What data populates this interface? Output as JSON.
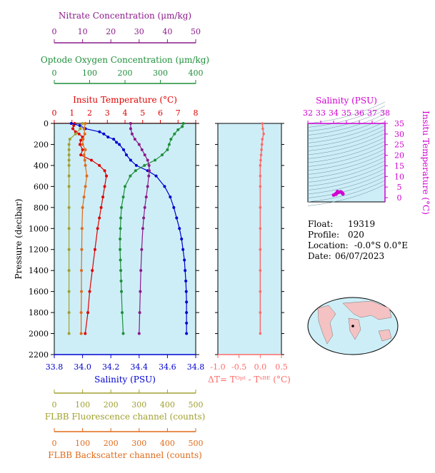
{
  "colors": {
    "nitrate": "#8b1a8b",
    "oxygen": "#1f8f3a",
    "temperature": "#e00000",
    "salinity": "#0000d0",
    "fluorescence": "#a0a030",
    "backscatter": "#e06a1a",
    "deltaT": "#ff6a6a",
    "ts": "#d000d0",
    "panel_bg": "#cdeef7",
    "map_land": "#f4c2c2"
  },
  "info": {
    "float_label": "Float:",
    "float_value": "19319",
    "profile_label": "Profile:",
    "profile_value": "020",
    "location_label": "Location:",
    "location_value": "-0.0°S   0.0°E",
    "date_label": "Date:",
    "date_value": "06/07/2023"
  },
  "chart_data": [
    {
      "type": "line",
      "name": "main-profiles",
      "ylabel": "Pressure (decibar)",
      "ylim": [
        2200,
        0
      ],
      "yticks": [
        0,
        200,
        400,
        600,
        800,
        1000,
        1200,
        1400,
        1600,
        1800,
        2000,
        2200
      ],
      "axes": {
        "nitrate": {
          "label": "Nitrate Concentration (μm/kg)",
          "range": [
            0,
            50
          ],
          "ticks": [
            0,
            10,
            20,
            30,
            40,
            50
          ]
        },
        "oxygen": {
          "label": "Optode Oxygen Concentration (μm/kg)",
          "range": [
            0,
            400
          ],
          "ticks": [
            0,
            100,
            200,
            300,
            400
          ]
        },
        "temperature": {
          "label": "Insitu Temperature (°C)",
          "range": [
            0,
            8
          ],
          "ticks": [
            0,
            1,
            2,
            3,
            4,
            5,
            6,
            7,
            8
          ]
        },
        "salinity": {
          "label": "Salinity (PSU)",
          "range": [
            33.8,
            34.8
          ],
          "ticks": [
            "33.8",
            "34.0",
            "34.2",
            "34.4",
            "34.6",
            "34.8"
          ]
        },
        "fluorescence": {
          "label": "FLBB Fluorescence channel (counts)",
          "range": [
            0,
            500
          ],
          "ticks": [
            0,
            100,
            200,
            300,
            400,
            500
          ]
        },
        "backscatter": {
          "label": "FLBB Backscatter channel (counts)",
          "range": [
            0,
            500
          ],
          "ticks": [
            0,
            100,
            200,
            300,
            400,
            500
          ]
        }
      },
      "series": [
        {
          "key": "temperature",
          "pressure": [
            0,
            20,
            50,
            80,
            100,
            130,
            160,
            200,
            250,
            300,
            350,
            400,
            450,
            500,
            600,
            700,
            800,
            900,
            1000,
            1200,
            1400,
            1600,
            1800,
            2000
          ],
          "values": [
            1.15,
            1.1,
            1.05,
            1.2,
            1.4,
            1.6,
            1.5,
            1.45,
            1.6,
            1.5,
            2.1,
            2.55,
            2.85,
            2.95,
            2.85,
            2.75,
            2.65,
            2.55,
            2.45,
            2.3,
            2.15,
            2.0,
            1.9,
            1.75
          ]
        },
        {
          "key": "salinity",
          "pressure": [
            0,
            20,
            50,
            80,
            100,
            130,
            150,
            180,
            200,
            250,
            300,
            350,
            400,
            450,
            500,
            600,
            700,
            800,
            900,
            1000,
            1100,
            1200,
            1300,
            1400,
            1500,
            1600,
            1700,
            1800,
            1900,
            2000
          ],
          "values": [
            33.92,
            33.98,
            34.02,
            34.12,
            34.15,
            34.18,
            34.22,
            34.24,
            34.26,
            34.29,
            34.31,
            34.34,
            34.38,
            34.46,
            34.52,
            34.58,
            34.62,
            34.645,
            34.665,
            34.685,
            34.7,
            34.71,
            34.72,
            34.725,
            34.73,
            34.733,
            34.735,
            34.735,
            34.735,
            34.735
          ]
        },
        {
          "key": "oxygen",
          "pressure": [
            0,
            30,
            60,
            100,
            150,
            200,
            250,
            300,
            350,
            400,
            450,
            500,
            600,
            700,
            800,
            900,
            1000,
            1100,
            1200,
            1300,
            1400,
            1500,
            1600,
            1800,
            2000
          ],
          "values": [
            365,
            362,
            350,
            340,
            330,
            325,
            320,
            305,
            285,
            255,
            230,
            215,
            200,
            195,
            190,
            188,
            187,
            186,
            186,
            187,
            188,
            189,
            190,
            192,
            195
          ]
        },
        {
          "key": "nitrate",
          "pressure": [
            0,
            50,
            100,
            150,
            200,
            250,
            300,
            350,
            400,
            450,
            500,
            600,
            700,
            800,
            900,
            1000,
            1200,
            1400,
            1600,
            1800,
            2000
          ],
          "values": [
            27,
            27,
            27.5,
            28.5,
            30,
            31,
            32,
            33,
            33.5,
            33.6,
            33.4,
            33,
            32.5,
            32,
            31.6,
            31.3,
            30.9,
            30.6,
            30.4,
            30.2,
            30
          ]
        },
        {
          "key": "fluorescence",
          "pressure": [
            0,
            50,
            100,
            150,
            200,
            250,
            300,
            350,
            400,
            500,
            600,
            800,
            1000,
            1200,
            1400,
            1600,
            1800,
            2000
          ],
          "values": [
            100,
            92,
            75,
            55,
            52,
            52,
            52,
            52,
            52,
            52,
            52,
            52,
            52,
            52,
            52,
            52,
            52,
            52
          ]
        },
        {
          "key": "backscatter",
          "pressure": [
            0,
            50,
            100,
            150,
            200,
            250,
            300,
            350,
            400,
            500,
            600,
            700,
            800,
            1000,
            1200,
            1400,
            1600,
            1800,
            2000
          ],
          "values": [
            110,
            105,
            108,
            102,
            100,
            110,
            105,
            108,
            110,
            115,
            110,
            105,
            100,
            98,
            97,
            96,
            96,
            95,
            95
          ]
        }
      ]
    },
    {
      "type": "line",
      "name": "delta-t",
      "xlabel": "ΔT= T^Opt - T^SBE (°C)",
      "xlim": [
        -1.0,
        0.5
      ],
      "xticks": [
        "-1.0",
        "-0.5",
        "0.0",
        "0.5"
      ],
      "ylim": [
        2200,
        0
      ],
      "pressure": [
        0,
        50,
        100,
        150,
        200,
        250,
        300,
        350,
        400,
        500,
        600,
        800,
        1000,
        1200,
        1400,
        1600,
        1800,
        2000
      ],
      "values": [
        0.05,
        0.06,
        0.08,
        0.05,
        0.04,
        0.03,
        0.02,
        0.01,
        0.0,
        0.0,
        0.0,
        0.0,
        0.0,
        0.0,
        0.0,
        0.0,
        0.0,
        0.0
      ]
    },
    {
      "type": "scatter",
      "name": "t-s-diagram",
      "xlabel": "Salinity (PSU)",
      "ylabel": "Insitu Temperature (°C)",
      "xlim": [
        32,
        38
      ],
      "ylim": [
        -2,
        35
      ],
      "xticks": [
        32,
        33,
        34,
        35,
        36,
        37,
        38
      ],
      "yticks": [
        0,
        5,
        10,
        15,
        20,
        25,
        30,
        35
      ],
      "x": [
        34.0,
        34.1,
        34.2,
        34.35,
        34.45,
        34.55,
        34.62,
        34.68,
        34.72,
        34.73,
        34.2,
        34.3
      ],
      "y": [
        1.2,
        1.5,
        2.0,
        2.4,
        2.6,
        2.8,
        2.5,
        2.2,
        1.9,
        1.7,
        1.6,
        2.9
      ]
    }
  ]
}
